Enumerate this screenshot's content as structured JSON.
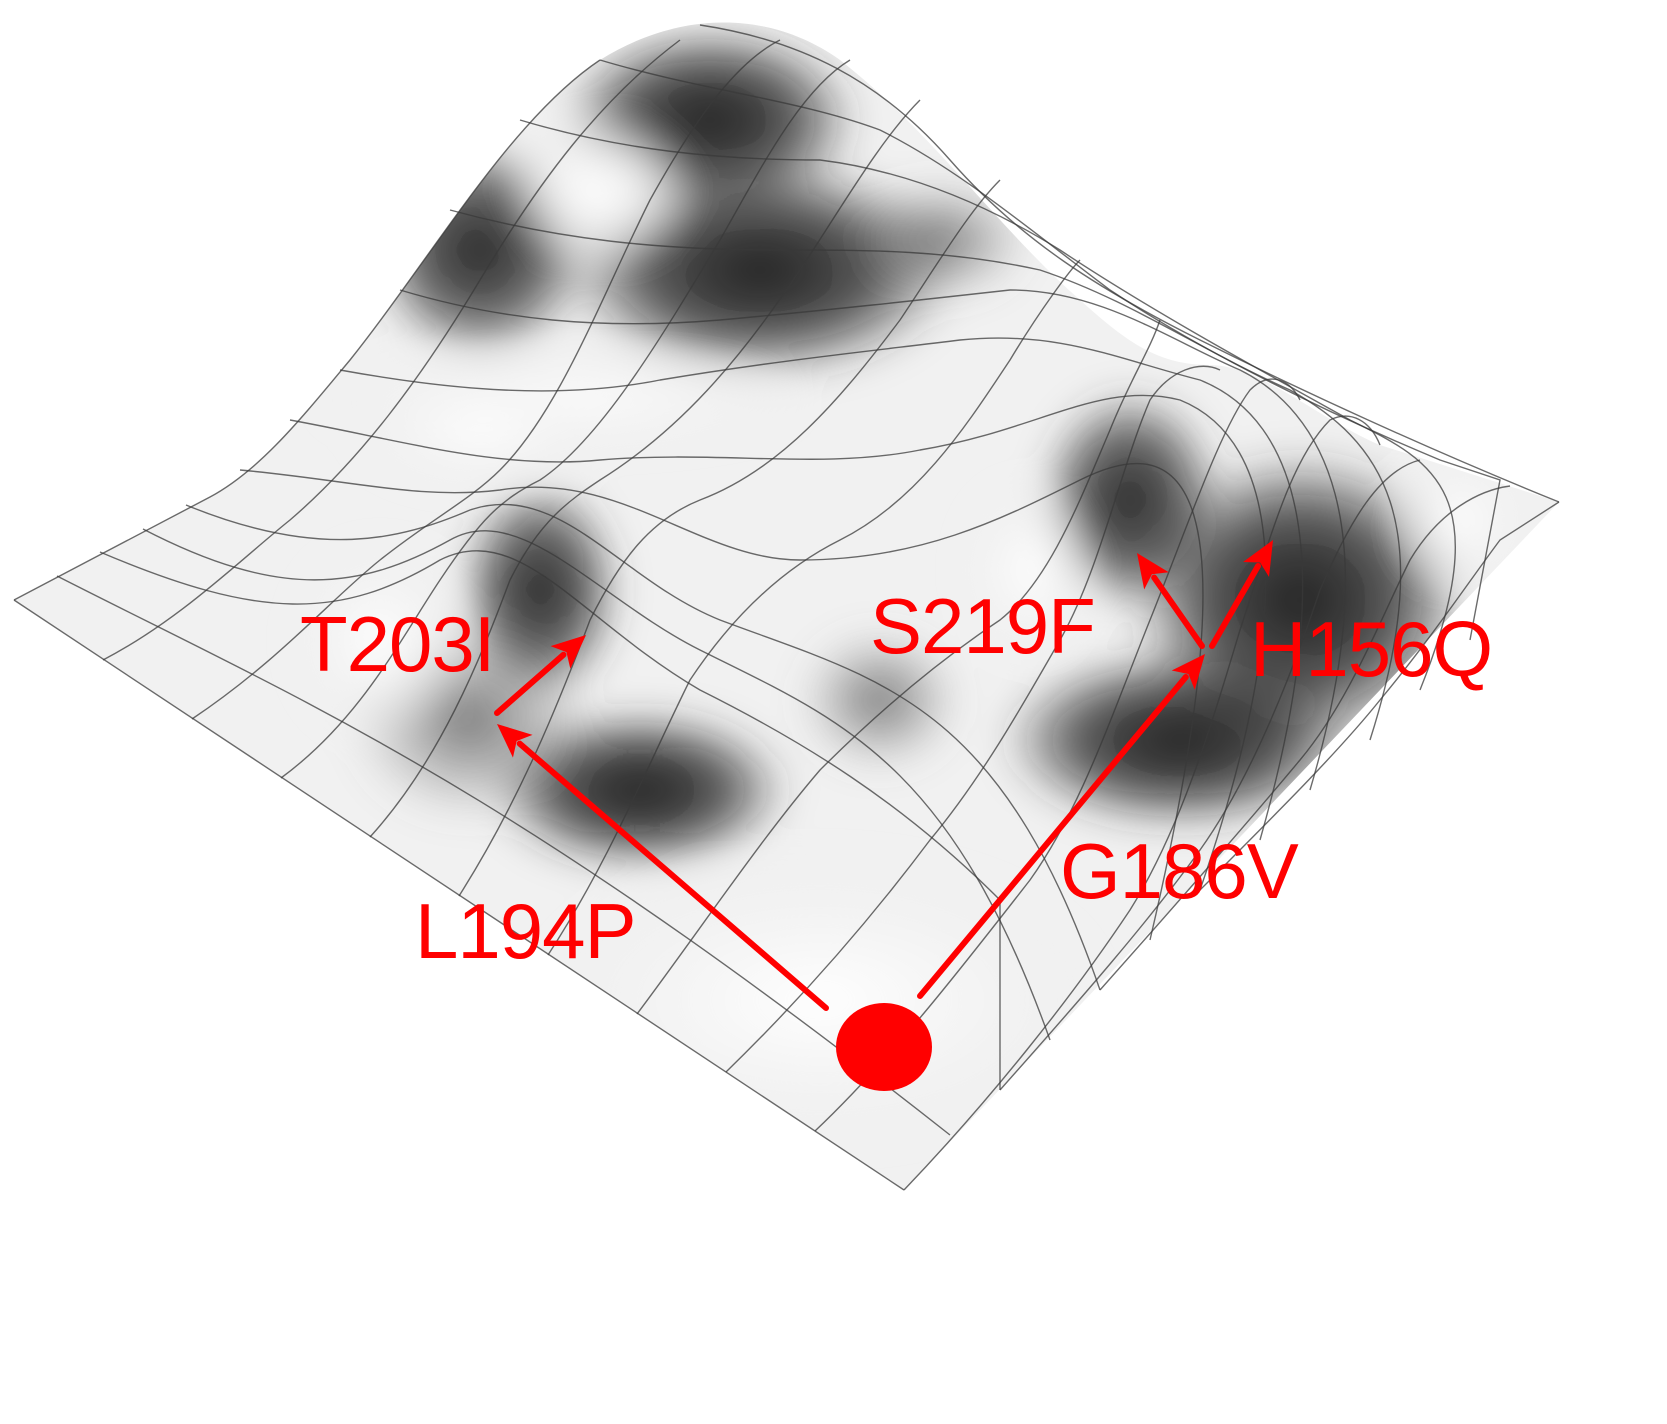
{
  "diagram": {
    "type": "fitness-landscape-3d-surface",
    "surface_shading": "grayscale",
    "accent_color": "#ff0000",
    "start_marker": "red-dot",
    "mutations": [
      {
        "label": "L194P",
        "from": "start",
        "to": "left-peak-base"
      },
      {
        "label": "T203I",
        "from": "left-peak-base",
        "to": "left-peak"
      },
      {
        "label": "G186V",
        "from": "start",
        "to": "right-peak-base"
      },
      {
        "label": "S219F",
        "from": "right-peak-base",
        "to": "right-peak-left"
      },
      {
        "label": "H156Q",
        "from": "right-peak-base",
        "to": "right-peak-right"
      }
    ]
  }
}
